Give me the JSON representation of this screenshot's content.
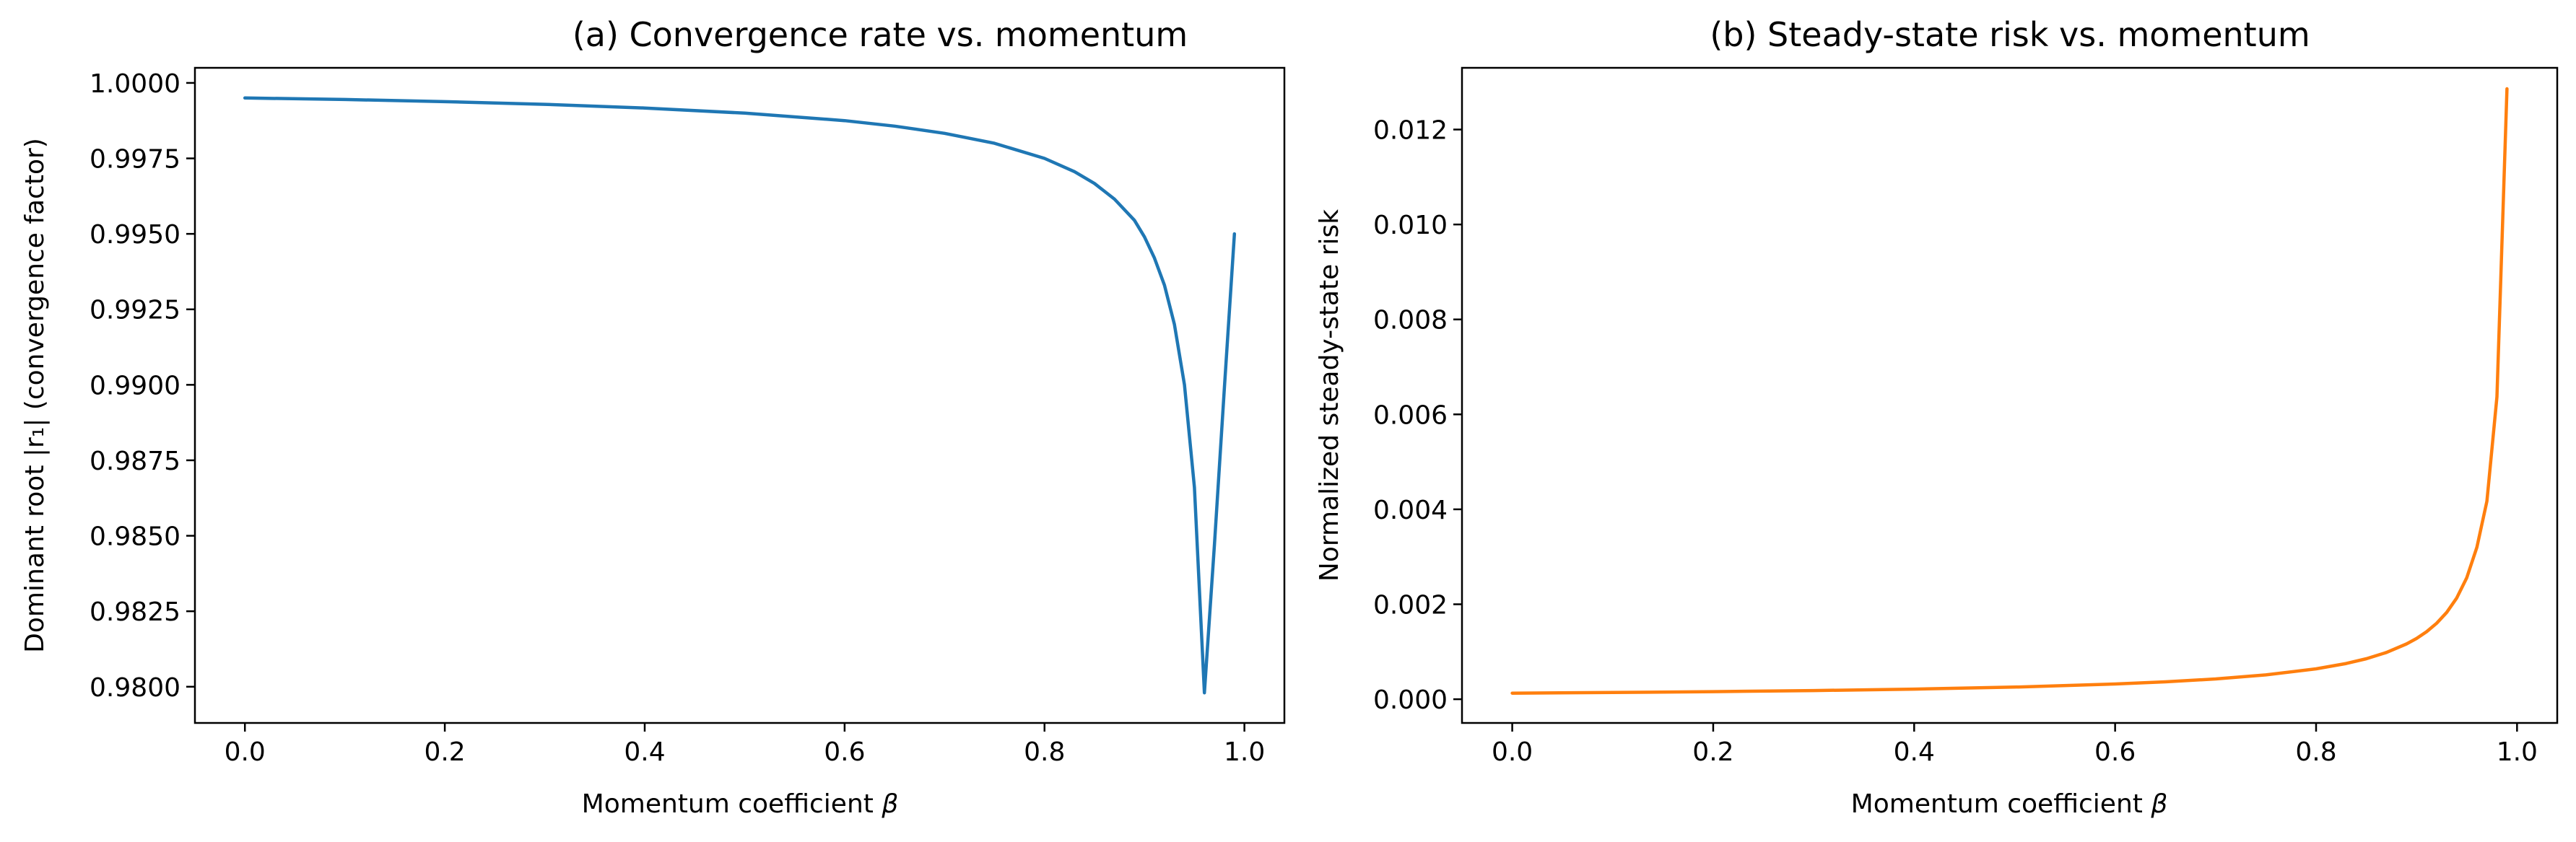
{
  "chart_data": [
    {
      "type": "line",
      "title": "(a) Convergence rate vs. momentum",
      "xlabel": "Momentum coefficient",
      "xlabel_symbol": "β",
      "ylabel": "Dominant root |r₁| (convergence factor)",
      "xlim": [
        -0.05,
        1.04
      ],
      "ylim": [
        0.9788,
        1.0005
      ],
      "xticks": [
        0.0,
        0.2,
        0.4,
        0.6,
        0.8,
        1.0
      ],
      "xtick_labels": [
        "0.0",
        "0.2",
        "0.4",
        "0.6",
        "0.8",
        "1.0"
      ],
      "yticks": [
        0.98,
        0.9825,
        0.985,
        0.9875,
        0.99,
        0.9925,
        0.995,
        0.9975,
        1.0
      ],
      "ytick_labels": [
        "0.9800",
        "0.9825",
        "0.9850",
        "0.9875",
        "0.9900",
        "0.9925",
        "0.9950",
        "0.9975",
        "1.0000"
      ],
      "grid": false,
      "series": [
        {
          "color": "#1f77b4",
          "x": [
            0.0,
            0.1,
            0.2,
            0.3,
            0.4,
            0.5,
            0.6,
            0.65,
            0.7,
            0.75,
            0.8,
            0.83,
            0.85,
            0.87,
            0.89,
            0.9,
            0.91,
            0.92,
            0.93,
            0.94,
            0.95,
            0.96,
            0.97,
            0.98,
            0.99
          ],
          "y": [
            0.9995,
            0.99945,
            0.99938,
            0.99929,
            0.99917,
            0.999,
            0.99875,
            0.99857,
            0.99833,
            0.998,
            0.9975,
            0.99706,
            0.99667,
            0.99615,
            0.99545,
            0.9949,
            0.9942,
            0.9933,
            0.992,
            0.99,
            0.9866,
            0.9798,
            0.9847,
            0.9899,
            0.995
          ]
        }
      ]
    },
    {
      "type": "line",
      "title": "(b) Steady-state risk vs. momentum",
      "xlabel": "Momentum coefficient",
      "xlabel_symbol": "β",
      "ylabel": "Normalized steady-state risk",
      "xlim": [
        -0.05,
        1.04
      ],
      "ylim": [
        -0.0005,
        0.0133
      ],
      "xticks": [
        0.0,
        0.2,
        0.4,
        0.6,
        0.8,
        1.0
      ],
      "xtick_labels": [
        "0.0",
        "0.2",
        "0.4",
        "0.6",
        "0.8",
        "1.0"
      ],
      "yticks": [
        0.0,
        0.002,
        0.004,
        0.006,
        0.008,
        0.01,
        0.012
      ],
      "ytick_labels": [
        "0.000",
        "0.002",
        "0.004",
        "0.006",
        "0.008",
        "0.010",
        "0.012"
      ],
      "grid": false,
      "series": [
        {
          "color": "#ff7f0e",
          "x": [
            0.0,
            0.1,
            0.2,
            0.3,
            0.4,
            0.5,
            0.6,
            0.65,
            0.7,
            0.75,
            0.8,
            0.83,
            0.85,
            0.87,
            0.89,
            0.9,
            0.91,
            0.92,
            0.93,
            0.94,
            0.95,
            0.96,
            0.97,
            0.98,
            0.99
          ],
          "y": [
            0.000128,
            0.000142,
            0.00016,
            0.000183,
            0.000213,
            0.000256,
            0.00032,
            0.000366,
            0.000427,
            0.000512,
            0.00064,
            0.000753,
            0.000853,
            0.000985,
            0.001164,
            0.00128,
            0.001422,
            0.0016,
            0.001829,
            0.002133,
            0.00256,
            0.0032,
            0.00417,
            0.00637,
            0.01286
          ]
        }
      ]
    }
  ]
}
